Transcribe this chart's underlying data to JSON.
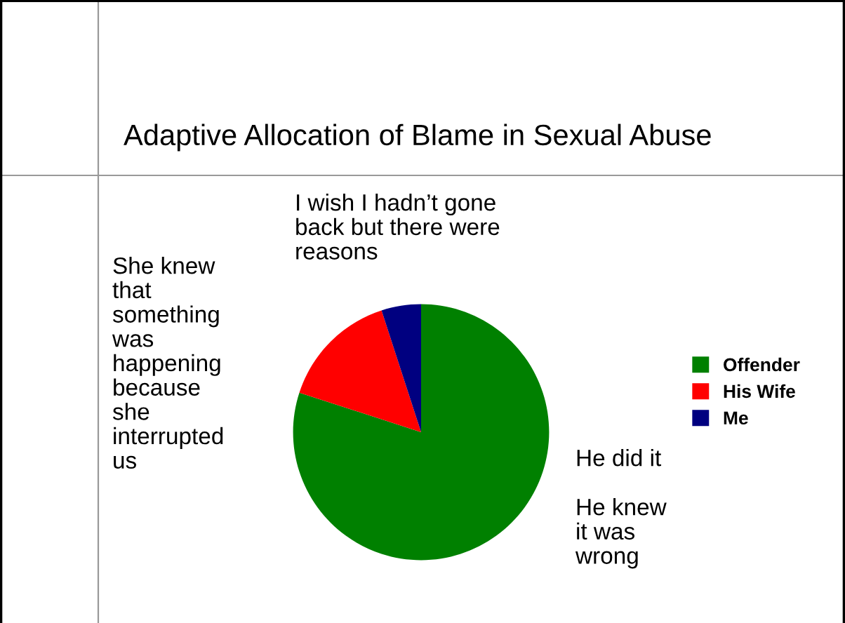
{
  "chart_data": {
    "type": "pie",
    "title": "Adaptive Allocation of Blame in Sexual Abuse",
    "categories": [
      "Offender",
      "His Wife",
      "Me"
    ],
    "values": [
      80,
      15,
      5
    ],
    "colors": [
      "#008000",
      "#ff0000",
      "#000080"
    ],
    "legend": "right",
    "annotations": [
      "I wish I hadn’t gone\nback but there were\nreasons",
      "She knew\nthat\nsomething\nwas\nhappening\nbecause\nshe\ninterrupted\nus",
      "He did it",
      "He knew\nit was\nwrong"
    ]
  }
}
